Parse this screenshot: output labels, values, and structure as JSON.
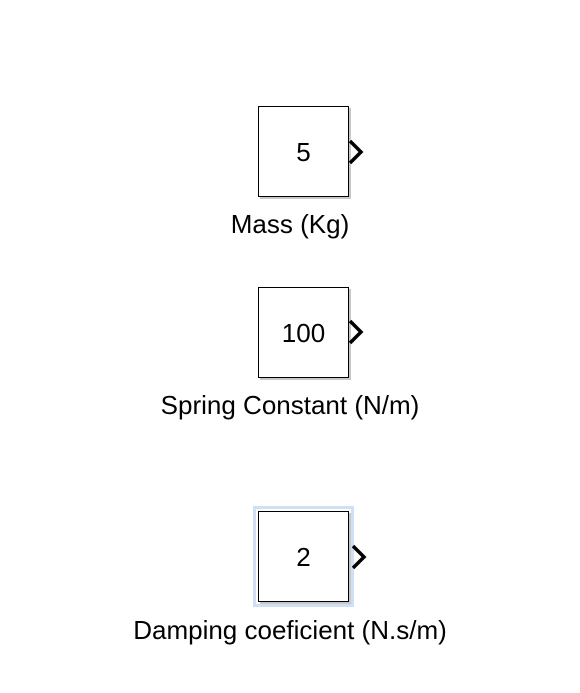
{
  "blocks": [
    {
      "value": "5",
      "label": "Mass (Kg)"
    },
    {
      "value": "100",
      "label": "Spring Constant (N/m)"
    },
    {
      "value": "2",
      "label": "Damping coeficient (N.s/m)"
    }
  ],
  "colors": {
    "block_border": "#000000",
    "selection_highlight": "#cfe0f5",
    "block_shadow": "#c8c8c8"
  }
}
